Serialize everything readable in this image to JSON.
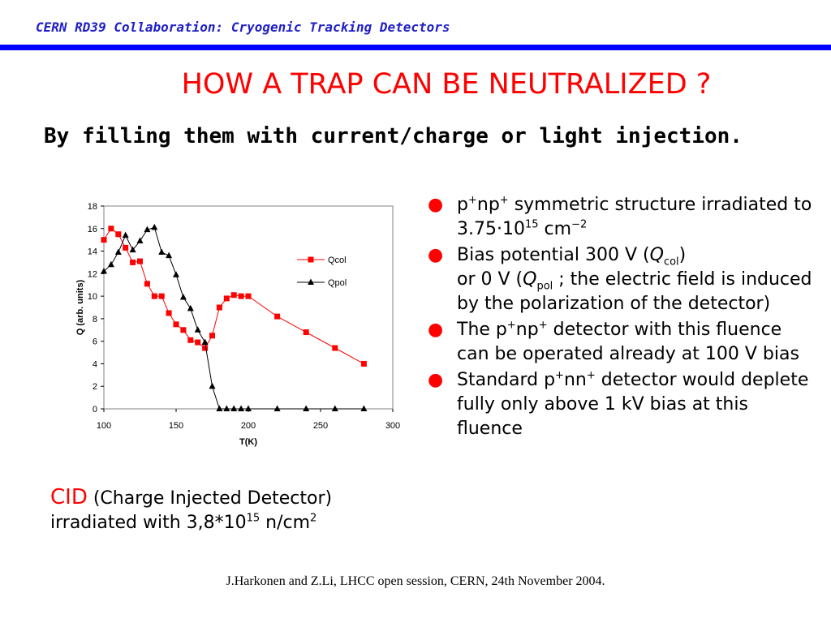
{
  "header": {
    "title": "CERN RD39 Collaboration: Cryogenic Tracking Detectors"
  },
  "slide": {
    "title": "HOW A TRAP CAN BE NEUTRALIZED ?",
    "subtitle": "By filling them with current/charge or light injection."
  },
  "cid_note": {
    "label": "CID",
    "line1_rest": " (Charge Injected Detector)",
    "line2_prefix": "irradiated with 3,8*10",
    "line2_exp": "15",
    "line2_unit": " n/cm",
    "line2_unit_exp": "2"
  },
  "bullets": {
    "b1": {
      "p1": "p",
      "s1": "+",
      "p2": "np",
      "s2": "+",
      "p3": "  symmetric structure irradiated to 3.75·10",
      "s3": "15",
      "p4": " cm",
      "s4": "−2"
    },
    "b2": {
      "p1": "Bias potential 300 V (",
      "q1": "Q",
      "sub1": "col",
      "p2": ")",
      "p3": "or 0 V (",
      "q2": "Q",
      "sub2": "pol",
      "p4": " ; the electric field is induced by the polarization of the detector)"
    },
    "b3": {
      "p1": "The p",
      "s1": "+",
      "p2": "np",
      "s2": "+",
      "p3": " detector with this fluence can be operated already at 100 V bias"
    },
    "b4": {
      "p1": "Standard p",
      "s1": "+",
      "p2": "nn",
      "s2": "+",
      "p3": " detector would deplete fully only above 1 kV bias at this fluence"
    }
  },
  "footer": {
    "text": "J.Harkonen and Z.Li, LHCC open session, CERN, 24th November 2004."
  },
  "chart_data": {
    "type": "line",
    "xlabel": "T(K)",
    "ylabel": "Q (arb. units)",
    "xlim": [
      100,
      300
    ],
    "ylim": [
      0,
      18
    ],
    "x_ticks": [
      100,
      150,
      200,
      250,
      300
    ],
    "y_ticks": [
      0,
      2,
      4,
      6,
      8,
      10,
      12,
      14,
      16,
      18
    ],
    "legend_position": "right",
    "series": [
      {
        "name": "Qcol",
        "color": "#ff0000",
        "marker": "square",
        "x": [
          100,
          105,
          110,
          115,
          120,
          125,
          130,
          135,
          140,
          145,
          150,
          155,
          160,
          165,
          170,
          175,
          180,
          185,
          190,
          195,
          200,
          220,
          240,
          260,
          280
        ],
        "y": [
          15.0,
          16.0,
          15.5,
          14.3,
          13.0,
          13.1,
          11.1,
          10.0,
          10.0,
          8.5,
          7.5,
          7.0,
          6.1,
          5.9,
          5.4,
          6.5,
          9.0,
          9.8,
          10.1,
          10.0,
          10.0,
          8.2,
          6.8,
          5.4,
          4.0
        ]
      },
      {
        "name": "Qpol",
        "color": "#000000",
        "marker": "triangle",
        "x": [
          100,
          105,
          110,
          115,
          120,
          125,
          130,
          135,
          140,
          145,
          150,
          155,
          160,
          165,
          170,
          175,
          180,
          185,
          190,
          195,
          200,
          220,
          240,
          260,
          280
        ],
        "y": [
          12.2,
          12.8,
          13.9,
          15.4,
          14.1,
          14.9,
          15.9,
          16.1,
          13.9,
          13.6,
          11.9,
          9.9,
          8.9,
          7.0,
          5.9,
          2.0,
          0,
          0,
          0,
          0,
          0,
          0,
          0,
          0,
          0
        ]
      }
    ]
  }
}
